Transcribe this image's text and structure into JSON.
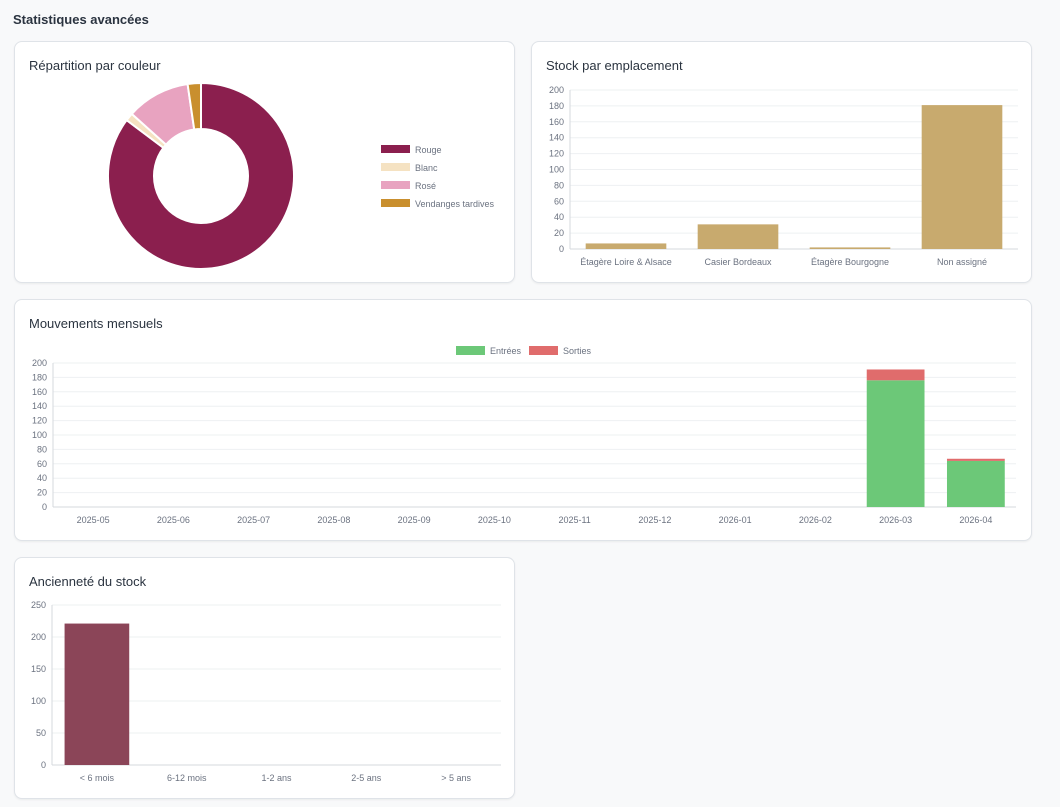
{
  "page": {
    "title": "Statistiques avancées"
  },
  "cards": {
    "color": {
      "title": "Répartition par couleur"
    },
    "location": {
      "title": "Stock par emplacement"
    },
    "monthly": {
      "title": "Mouvements mensuels"
    },
    "age": {
      "title": "Ancienneté du stock"
    }
  },
  "chart_data": [
    {
      "id": "color",
      "type": "pie",
      "donut": true,
      "title": "Répartition par couleur",
      "legend_position": "right",
      "categories": [
        "Rouge",
        "Blanc",
        "Rosé",
        "Vendanges tardives"
      ],
      "values": [
        185,
        3,
        24,
        5
      ],
      "colors": [
        "#8b1f4e",
        "#f5e2c2",
        "#e8a3c0",
        "#c98f2e"
      ]
    },
    {
      "id": "location",
      "type": "bar",
      "title": "Stock par emplacement",
      "categories": [
        "Étagère Loire & Alsace",
        "Casier Bordeaux",
        "Étagère Bourgogne",
        "Non assigné"
      ],
      "values": [
        7,
        31,
        2,
        181
      ],
      "ylim": [
        0,
        200
      ],
      "yticks": [
        0,
        20,
        40,
        60,
        80,
        100,
        120,
        140,
        160,
        180,
        200
      ],
      "color": "#c8aa6e",
      "grid": true
    },
    {
      "id": "monthly",
      "type": "bar",
      "stacked": true,
      "title": "Mouvements mensuels",
      "legend_position": "top",
      "categories": [
        "2025-05",
        "2025-06",
        "2025-07",
        "2025-08",
        "2025-09",
        "2025-10",
        "2025-11",
        "2025-12",
        "2026-01",
        "2026-02",
        "2026-03",
        "2026-04"
      ],
      "series": [
        {
          "name": "Entrées",
          "color": "#6cc878",
          "values": [
            0,
            0,
            0,
            0,
            0,
            0,
            0,
            0,
            0,
            0,
            176,
            64
          ]
        },
        {
          "name": "Sorties",
          "color": "#e06c6c",
          "values": [
            0,
            0,
            0,
            0,
            0,
            0,
            0,
            0,
            0,
            0,
            15,
            3
          ]
        }
      ],
      "ylim": [
        0,
        200
      ],
      "yticks": [
        0,
        20,
        40,
        60,
        80,
        100,
        120,
        140,
        160,
        180,
        200
      ],
      "grid": true
    },
    {
      "id": "age",
      "type": "bar",
      "title": "Ancienneté du stock",
      "categories": [
        "< 6 mois",
        "6-12 mois",
        "1-2 ans",
        "2-5 ans",
        "> 5 ans"
      ],
      "values": [
        221,
        0,
        0,
        0,
        0
      ],
      "ylim": [
        0,
        250
      ],
      "yticks": [
        0,
        50,
        100,
        150,
        200,
        250
      ],
      "color": "#8b4558",
      "grid": true
    }
  ]
}
